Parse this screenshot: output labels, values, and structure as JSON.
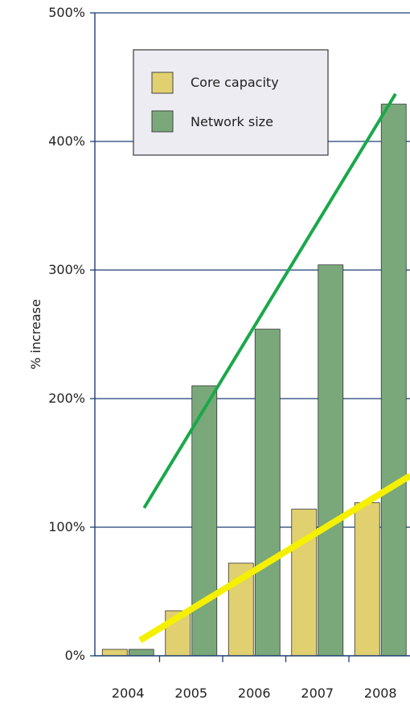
{
  "chart_data": {
    "type": "bar",
    "categories": [
      "2004",
      "2005",
      "2006",
      "2007",
      "2008"
    ],
    "series": [
      {
        "name": "Core capacity",
        "values": [
          5,
          35,
          72,
          114,
          119
        ],
        "color": "#e0d070"
      },
      {
        "name": "Network size",
        "values": [
          5,
          210,
          254,
          304,
          429
        ],
        "color": "#7aa87a"
      }
    ],
    "ylabel": "% increase",
    "ylim": [
      0,
      500
    ],
    "yticks": [
      0,
      100,
      200,
      300,
      400,
      500
    ],
    "ytick_labels": [
      "0%",
      "100%",
      "200%",
      "300%",
      "400%",
      "500%"
    ],
    "grid": true,
    "legend_position": "top-center",
    "annotations": [
      {
        "type": "trend-line",
        "color": "#1aa84a",
        "from": {
          "x": "2004",
          "y": 115
        },
        "to": {
          "x": "2008",
          "y": 437
        }
      },
      {
        "type": "trend-line",
        "color": "#f5f000",
        "from": {
          "x": "2004",
          "y": 12
        },
        "to": {
          "x": "2008",
          "y": 140
        }
      }
    ],
    "colors": {
      "axis": "#1f3f73",
      "grid": "#1f3f73",
      "legend_bg": "#ececf2",
      "bar_border": "#333333"
    }
  }
}
